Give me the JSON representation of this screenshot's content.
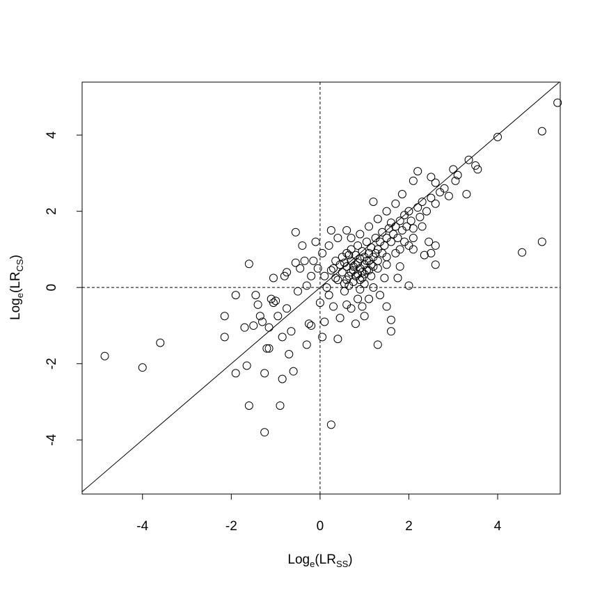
{
  "chart_data": {
    "type": "scatter",
    "xlabel": [
      "Log",
      "e",
      "(LR",
      "SS",
      ")"
    ],
    "ylabel": [
      "Log",
      "e",
      "(LR",
      "CS",
      ")"
    ],
    "xlim": [
      -5.36,
      5.41
    ],
    "ylim": [
      -5.42,
      5.39
    ],
    "xticks": [
      -4,
      -2,
      0,
      2,
      4
    ],
    "yticks": [
      -4,
      -2,
      0,
      2,
      4
    ],
    "color": "#000000",
    "reference_lines": {
      "identity": true,
      "h": [
        0
      ],
      "v": [
        0
      ]
    },
    "x": [
      -4.85,
      -4.0,
      -3.6,
      -2.15,
      -2.15,
      -1.9,
      -1.9,
      -1.7,
      -1.6,
      -1.6,
      -1.65,
      -1.5,
      -1.45,
      -1.4,
      -1.35,
      -1.3,
      -1.25,
      -1.25,
      -1.2,
      -1.15,
      -1.15,
      -1.1,
      -1.05,
      -1.05,
      -1.0,
      -0.95,
      -0.9,
      -0.85,
      -0.85,
      -0.8,
      -0.75,
      -0.75,
      -0.7,
      -0.65,
      -0.6,
      -0.55,
      -0.55,
      -0.5,
      -0.45,
      -0.4,
      -0.35,
      -0.3,
      -0.25,
      -0.2,
      -0.1,
      -0.05,
      0.05,
      0.1,
      0.25,
      0.25,
      0.4,
      0.6,
      0.7,
      0.8,
      1.0,
      1.2,
      1.3,
      1.5,
      1.6,
      1.6,
      1.75,
      1.8,
      1.85,
      2.0,
      2.1,
      2.1,
      2.2,
      2.35,
      2.45,
      2.5,
      2.6,
      2.6,
      2.5,
      2.6,
      3.0,
      3.3,
      3.35,
      3.5,
      3.55,
      4.0,
      4.55,
      5.0,
      5.0,
      5.35,
      0.3,
      0.35,
      0.4,
      0.45,
      0.5,
      0.5,
      0.55,
      0.6,
      0.6,
      0.65,
      0.7,
      0.7,
      0.75,
      0.75,
      0.8,
      0.8,
      0.85,
      0.85,
      0.9,
      0.9,
      0.95,
      0.95,
      1.0,
      1.0,
      1.0,
      1.05,
      1.05,
      1.1,
      1.1,
      1.15,
      1.15,
      1.2,
      1.2,
      1.25,
      1.3,
      1.3,
      1.35,
      1.4,
      1.4,
      1.45,
      1.5,
      1.5,
      1.55,
      1.6,
      1.6,
      1.65,
      1.7,
      1.75,
      1.8,
      1.85,
      1.9,
      1.95,
      2.0,
      2.05,
      2.1,
      2.2,
      2.25,
      2.3,
      2.4,
      2.5,
      2.6,
      2.7,
      2.8,
      2.9,
      3.05,
      3.1,
      0.1,
      0.0,
      0.15,
      0.2,
      0.3,
      0.45,
      0.55,
      0.6,
      0.65,
      0.85,
      0.9,
      0.95,
      1.1,
      1.2,
      1.35,
      1.45,
      -0.2,
      -0.15,
      -0.3,
      0.05,
      0.2,
      0.4,
      0.7,
      0.9,
      1.1,
      1.3,
      1.5,
      1.7,
      0.25,
      0.35,
      0.55,
      0.65,
      0.75,
      0.85,
      0.95,
      1.05,
      1.15,
      1.25,
      0.6,
      0.7,
      0.8,
      0.9,
      1.0,
      1.1,
      1.3,
      1.5,
      1.7,
      1.9,
      2.1,
      2.3,
      2.0,
      1.8
    ],
    "values": [
      -1.8,
      -2.1,
      -1.45,
      -0.75,
      -1.3,
      -0.2,
      -2.25,
      -1.05,
      0.62,
      -3.1,
      -2.05,
      -1.0,
      -0.2,
      -0.45,
      -0.75,
      -0.9,
      -2.25,
      -3.8,
      -1.6,
      -1.6,
      -1.05,
      -0.3,
      -0.4,
      0.25,
      -0.35,
      -0.75,
      -3.1,
      -2.4,
      -1.3,
      0.3,
      0.4,
      -0.55,
      -1.75,
      -1.15,
      -2.2,
      1.45,
      0.65,
      -0.1,
      0.5,
      1.1,
      0.7,
      -1.5,
      -0.95,
      -1.0,
      1.2,
      0.5,
      -1.3,
      -0.9,
      -3.6,
      1.5,
      -1.35,
      1.5,
      -0.55,
      -0.95,
      -0.75,
      2.25,
      -1.5,
      -0.5,
      -0.85,
      -1.15,
      0.25,
      0.55,
      2.45,
      0.05,
      1.0,
      2.8,
      3.05,
      0.85,
      1.2,
      0.9,
      1.1,
      0.6,
      2.9,
      2.75,
      3.1,
      2.45,
      3.35,
      3.2,
      3.1,
      3.95,
      0.92,
      4.1,
      1.2,
      4.85,
      0.5,
      0.7,
      0.2,
      0.6,
      0.8,
      0.4,
      0.1,
      0.9,
      0.55,
      0.3,
      0.7,
      1.0,
      0.45,
      0.15,
      0.6,
      0.85,
      0.35,
      1.1,
      0.5,
      0.75,
      0.25,
      0.95,
      0.6,
      0.8,
      0.1,
      0.45,
      1.2,
      0.7,
      0.9,
      0.3,
      1.05,
      0.8,
      0.55,
      1.3,
      1.0,
      0.7,
      1.2,
      0.9,
      1.45,
      1.1,
      1.3,
      0.8,
      1.55,
      1.2,
      1.7,
      1.4,
      1.6,
      1.3,
      1.75,
      1.5,
      1.9,
      1.6,
      2.0,
      1.75,
      1.55,
      2.1,
      1.85,
      2.25,
      2.0,
      2.35,
      2.2,
      2.5,
      2.6,
      2.4,
      2.8,
      2.95,
      0.3,
      -0.4,
      0.0,
      -0.2,
      -0.5,
      -0.8,
      -0.1,
      -0.45,
      0.05,
      -0.3,
      -0.05,
      -0.5,
      -0.3,
      0.0,
      -0.2,
      0.25,
      0.3,
      0.7,
      0.05,
      0.9,
      1.1,
      1.3,
      1.3,
      1.4,
      1.6,
      1.8,
      2.0,
      2.2,
      0.45,
      0.25,
      0.65,
      0.85,
      0.55,
      0.65,
      0.4,
      0.7,
      0.6,
      0.9,
      0.2,
      0.4,
      0.3,
      0.2,
      0.35,
      0.45,
      0.5,
      0.6,
      0.9,
      1.2,
      1.3,
      1.6,
      1.1,
      1.0
    ]
  }
}
